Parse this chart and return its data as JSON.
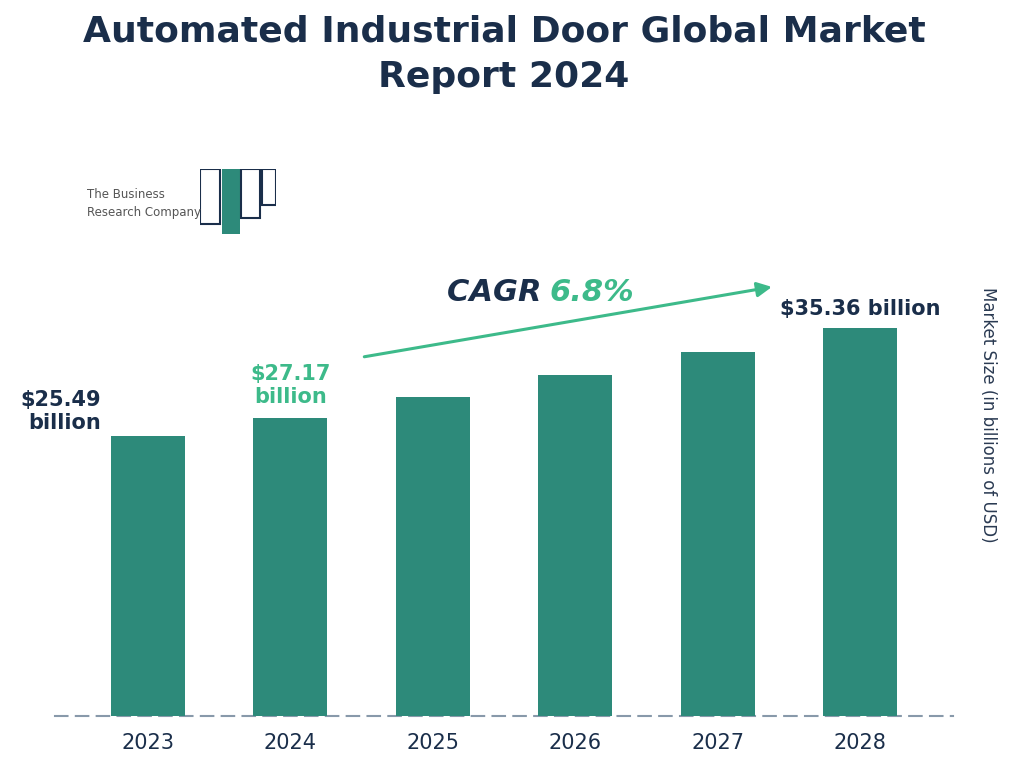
{
  "title_line1": "Automated Industrial Door Global Market",
  "title_line2": "Report 2024",
  "title_color": "#1a2e4a",
  "title_fontsize": 26,
  "categories": [
    "2023",
    "2024",
    "2025",
    "2026",
    "2027",
    "2028"
  ],
  "values": [
    25.49,
    27.17,
    29.03,
    31.01,
    33.11,
    35.36
  ],
  "bar_color": "#2d8a7a",
  "background_color": "#ffffff",
  "ylabel": "Market Size (in billions of USD)",
  "ylabel_color": "#2a3a52",
  "ylabel_fontsize": 12,
  "xlabel_fontsize": 15,
  "tick_color": "#1a2e4a",
  "cagr_label_color": "#1a2e4a",
  "cagr_value_color": "#3dba8a",
  "cagr_fontsize": 22,
  "arrow_color": "#3dba8a",
  "ylim": [
    0,
    55
  ],
  "bottom_line_color": "#8899aa",
  "ann_2023_color": "#1a2e4a",
  "ann_2024_color": "#3dba8a",
  "ann_2028_color": "#1a2e4a",
  "ann_fontsize": 15
}
